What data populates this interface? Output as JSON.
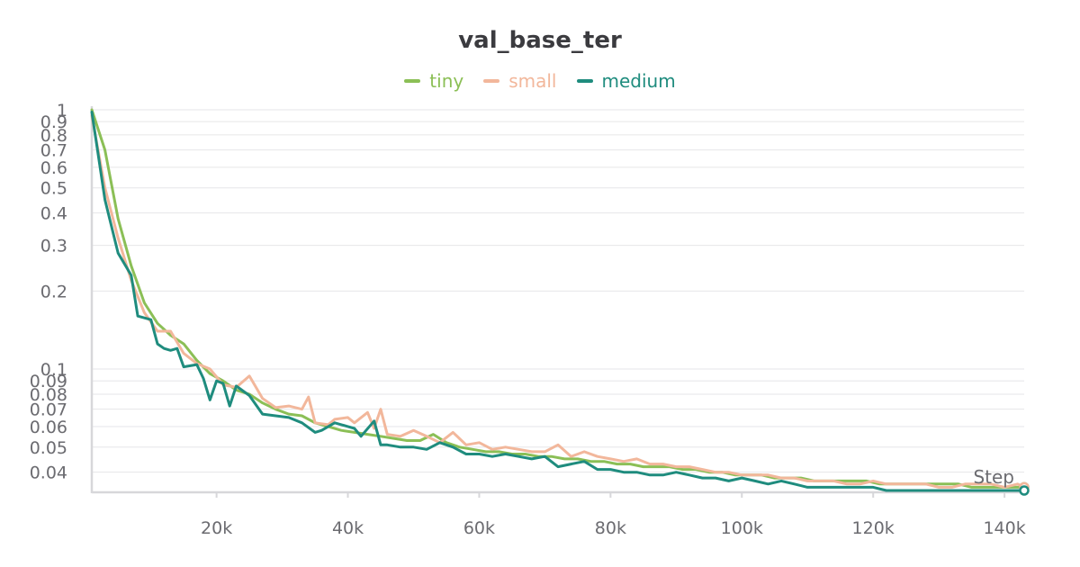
{
  "chart_data": {
    "type": "line",
    "title": "val_base_ter",
    "xlabel": "Step",
    "ylabel": "",
    "y_scale": "log",
    "xlim": [
      1000,
      143000
    ],
    "ylim": [
      0.034,
      1
    ],
    "grid": true,
    "legend_position": "top-center",
    "x_ticks": [
      {
        "value": 20000,
        "label": "20k"
      },
      {
        "value": 40000,
        "label": "40k"
      },
      {
        "value": 60000,
        "label": "60k"
      },
      {
        "value": 80000,
        "label": "80k"
      },
      {
        "value": 100000,
        "label": "100k"
      },
      {
        "value": 120000,
        "label": "120k"
      },
      {
        "value": 140000,
        "label": "140k"
      }
    ],
    "y_ticks": [
      {
        "value": 1,
        "label": "1"
      },
      {
        "value": 0.9,
        "label": "0.9"
      },
      {
        "value": 0.8,
        "label": "0.8"
      },
      {
        "value": 0.7,
        "label": "0.7"
      },
      {
        "value": 0.6,
        "label": "0.6"
      },
      {
        "value": 0.5,
        "label": "0.5"
      },
      {
        "value": 0.4,
        "label": "0.4"
      },
      {
        "value": 0.3,
        "label": "0.3"
      },
      {
        "value": 0.2,
        "label": "0.2"
      },
      {
        "value": 0.1,
        "label": "0.1"
      },
      {
        "value": 0.09,
        "label": "0.09"
      },
      {
        "value": 0.08,
        "label": "0.08"
      },
      {
        "value": 0.07,
        "label": "0.07"
      },
      {
        "value": 0.06,
        "label": "0.06"
      },
      {
        "value": 0.05,
        "label": "0.05"
      },
      {
        "value": 0.04,
        "label": "0.04"
      }
    ],
    "series": [
      {
        "name": "tiny",
        "color": "#8bbf56",
        "points": [
          [
            1000,
            1.0
          ],
          [
            3000,
            0.7
          ],
          [
            5000,
            0.38
          ],
          [
            7000,
            0.25
          ],
          [
            9000,
            0.18
          ],
          [
            11000,
            0.15
          ],
          [
            13000,
            0.135
          ],
          [
            15000,
            0.125
          ],
          [
            17000,
            0.108
          ],
          [
            19000,
            0.096
          ],
          [
            21000,
            0.09
          ],
          [
            23000,
            0.083
          ],
          [
            25000,
            0.08
          ],
          [
            27000,
            0.074
          ],
          [
            29000,
            0.07
          ],
          [
            31000,
            0.067
          ],
          [
            33000,
            0.066
          ],
          [
            35000,
            0.062
          ],
          [
            37000,
            0.06
          ],
          [
            39000,
            0.058
          ],
          [
            41000,
            0.057
          ],
          [
            43000,
            0.056
          ],
          [
            45000,
            0.055
          ],
          [
            47000,
            0.054
          ],
          [
            49000,
            0.053
          ],
          [
            51000,
            0.053
          ],
          [
            53000,
            0.056
          ],
          [
            55000,
            0.052
          ],
          [
            57000,
            0.05
          ],
          [
            59000,
            0.049
          ],
          [
            61000,
            0.048
          ],
          [
            63000,
            0.048
          ],
          [
            65000,
            0.047
          ],
          [
            67000,
            0.047
          ],
          [
            69000,
            0.046
          ],
          [
            71000,
            0.046
          ],
          [
            73000,
            0.045
          ],
          [
            75000,
            0.045
          ],
          [
            77000,
            0.044
          ],
          [
            79000,
            0.044
          ],
          [
            81000,
            0.043
          ],
          [
            83000,
            0.043
          ],
          [
            85000,
            0.042
          ],
          [
            87000,
            0.042
          ],
          [
            89000,
            0.042
          ],
          [
            91000,
            0.041
          ],
          [
            93000,
            0.041
          ],
          [
            95000,
            0.04
          ],
          [
            97000,
            0.04
          ],
          [
            99000,
            0.039
          ],
          [
            101000,
            0.039
          ],
          [
            103000,
            0.039
          ],
          [
            105000,
            0.038
          ],
          [
            107000,
            0.038
          ],
          [
            109000,
            0.038
          ],
          [
            111000,
            0.037
          ],
          [
            113000,
            0.037
          ],
          [
            115000,
            0.037
          ],
          [
            117000,
            0.037
          ],
          [
            119000,
            0.037
          ],
          [
            121000,
            0.036
          ],
          [
            123000,
            0.036
          ],
          [
            125000,
            0.036
          ],
          [
            127000,
            0.036
          ],
          [
            129000,
            0.036
          ],
          [
            131000,
            0.036
          ],
          [
            133000,
            0.036
          ],
          [
            135000,
            0.035
          ],
          [
            137000,
            0.035
          ],
          [
            139000,
            0.035
          ],
          [
            141000,
            0.035
          ],
          [
            143000,
            0.035
          ]
        ]
      },
      {
        "name": "small",
        "color": "#f2b79b",
        "points": [
          [
            1000,
            0.95
          ],
          [
            3000,
            0.5
          ],
          [
            5000,
            0.32
          ],
          [
            7000,
            0.22
          ],
          [
            9000,
            0.165
          ],
          [
            11000,
            0.14
          ],
          [
            13000,
            0.14
          ],
          [
            15000,
            0.115
          ],
          [
            17000,
            0.105
          ],
          [
            19000,
            0.1
          ],
          [
            21000,
            0.087
          ],
          [
            23000,
            0.085
          ],
          [
            25000,
            0.094
          ],
          [
            27000,
            0.077
          ],
          [
            29000,
            0.071
          ],
          [
            31000,
            0.072
          ],
          [
            33000,
            0.07
          ],
          [
            34000,
            0.078
          ],
          [
            35000,
            0.062
          ],
          [
            37000,
            0.061
          ],
          [
            38000,
            0.064
          ],
          [
            40000,
            0.065
          ],
          [
            41000,
            0.062
          ],
          [
            43000,
            0.068
          ],
          [
            44000,
            0.059
          ],
          [
            45000,
            0.07
          ],
          [
            46000,
            0.056
          ],
          [
            48000,
            0.055
          ],
          [
            50000,
            0.058
          ],
          [
            52000,
            0.055
          ],
          [
            54000,
            0.052
          ],
          [
            56000,
            0.057
          ],
          [
            58000,
            0.051
          ],
          [
            60000,
            0.052
          ],
          [
            62000,
            0.049
          ],
          [
            64000,
            0.05
          ],
          [
            66000,
            0.049
          ],
          [
            68000,
            0.048
          ],
          [
            70000,
            0.048
          ],
          [
            72000,
            0.051
          ],
          [
            74000,
            0.046
          ],
          [
            76000,
            0.048
          ],
          [
            78000,
            0.046
          ],
          [
            80000,
            0.045
          ],
          [
            82000,
            0.044
          ],
          [
            84000,
            0.045
          ],
          [
            86000,
            0.043
          ],
          [
            88000,
            0.043
          ],
          [
            90000,
            0.042
          ],
          [
            92000,
            0.042
          ],
          [
            94000,
            0.041
          ],
          [
            96000,
            0.04
          ],
          [
            98000,
            0.04
          ],
          [
            100000,
            0.039
          ],
          [
            102000,
            0.039
          ],
          [
            104000,
            0.039
          ],
          [
            106000,
            0.038
          ],
          [
            108000,
            0.038
          ],
          [
            110000,
            0.037
          ],
          [
            112000,
            0.037
          ],
          [
            114000,
            0.037
          ],
          [
            116000,
            0.036
          ],
          [
            118000,
            0.036
          ],
          [
            120000,
            0.037
          ],
          [
            122000,
            0.036
          ],
          [
            124000,
            0.036
          ],
          [
            126000,
            0.036
          ],
          [
            128000,
            0.036
          ],
          [
            130000,
            0.035
          ],
          [
            132000,
            0.035
          ],
          [
            134000,
            0.036
          ],
          [
            136000,
            0.036
          ],
          [
            138000,
            0.036
          ],
          [
            140000,
            0.035
          ],
          [
            142000,
            0.036
          ],
          [
            143000,
            0.035
          ]
        ]
      },
      {
        "name": "medium",
        "color": "#1f8c7e",
        "points": [
          [
            1000,
            0.98
          ],
          [
            3000,
            0.45
          ],
          [
            5000,
            0.28
          ],
          [
            7000,
            0.23
          ],
          [
            8000,
            0.16
          ],
          [
            10000,
            0.155
          ],
          [
            11000,
            0.125
          ],
          [
            12000,
            0.12
          ],
          [
            13000,
            0.118
          ],
          [
            14000,
            0.12
          ],
          [
            15000,
            0.102
          ],
          [
            17000,
            0.104
          ],
          [
            18000,
            0.092
          ],
          [
            19000,
            0.076
          ],
          [
            20000,
            0.09
          ],
          [
            21000,
            0.088
          ],
          [
            22000,
            0.072
          ],
          [
            23000,
            0.086
          ],
          [
            25000,
            0.079
          ],
          [
            27000,
            0.067
          ],
          [
            29000,
            0.066
          ],
          [
            31000,
            0.065
          ],
          [
            33000,
            0.062
          ],
          [
            35000,
            0.057
          ],
          [
            36000,
            0.058
          ],
          [
            38000,
            0.062
          ],
          [
            40000,
            0.06
          ],
          [
            41000,
            0.059
          ],
          [
            42000,
            0.055
          ],
          [
            44000,
            0.063
          ],
          [
            45000,
            0.051
          ],
          [
            46000,
            0.051
          ],
          [
            48000,
            0.05
          ],
          [
            50000,
            0.05
          ],
          [
            52000,
            0.049
          ],
          [
            54000,
            0.052
          ],
          [
            56000,
            0.05
          ],
          [
            58000,
            0.047
          ],
          [
            60000,
            0.047
          ],
          [
            62000,
            0.046
          ],
          [
            64000,
            0.047
          ],
          [
            66000,
            0.046
          ],
          [
            68000,
            0.045
          ],
          [
            70000,
            0.046
          ],
          [
            72000,
            0.042
          ],
          [
            74000,
            0.043
          ],
          [
            76000,
            0.044
          ],
          [
            78000,
            0.041
          ],
          [
            80000,
            0.041
          ],
          [
            82000,
            0.04
          ],
          [
            84000,
            0.04
          ],
          [
            86000,
            0.039
          ],
          [
            88000,
            0.039
          ],
          [
            90000,
            0.04
          ],
          [
            92000,
            0.039
          ],
          [
            94000,
            0.038
          ],
          [
            96000,
            0.038
          ],
          [
            98000,
            0.037
          ],
          [
            100000,
            0.038
          ],
          [
            102000,
            0.037
          ],
          [
            104000,
            0.036
          ],
          [
            106000,
            0.037
          ],
          [
            108000,
            0.036
          ],
          [
            110000,
            0.035
          ],
          [
            112000,
            0.035
          ],
          [
            114000,
            0.035
          ],
          [
            116000,
            0.035
          ],
          [
            118000,
            0.035
          ],
          [
            120000,
            0.035
          ],
          [
            122000,
            0.034
          ],
          [
            124000,
            0.034
          ],
          [
            126000,
            0.034
          ],
          [
            128000,
            0.034
          ],
          [
            130000,
            0.034
          ],
          [
            132000,
            0.034
          ],
          [
            134000,
            0.034
          ],
          [
            136000,
            0.034
          ],
          [
            138000,
            0.034
          ],
          [
            140000,
            0.034
          ],
          [
            142000,
            0.034
          ],
          [
            143000,
            0.034
          ]
        ]
      }
    ]
  }
}
